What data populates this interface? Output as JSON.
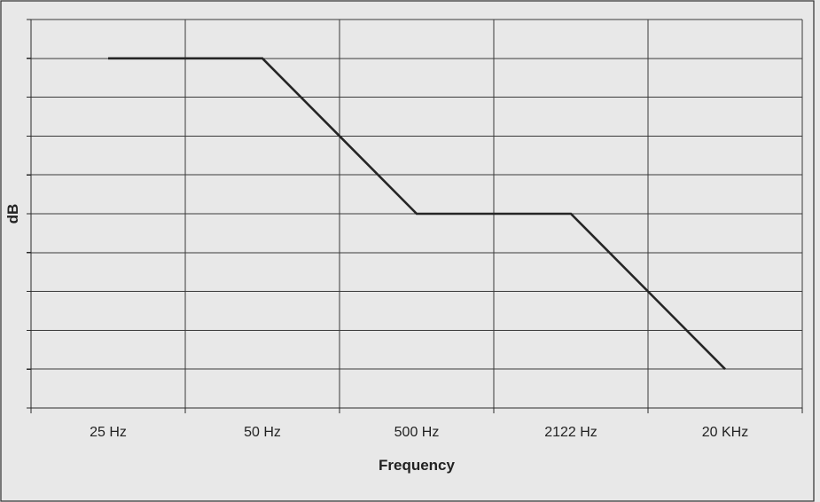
{
  "chart_data": {
    "type": "line",
    "title": "",
    "xlabel": "Frequency",
    "ylabel": "dB",
    "categories": [
      "25 Hz",
      "50 Hz",
      "500 Hz",
      "2122 Hz",
      "20 KHz"
    ],
    "y_ticks_labeled": false,
    "ylim": [
      0,
      10
    ],
    "grid": true,
    "series": [
      {
        "x": [
          0,
          1,
          2,
          3,
          4
        ],
        "y": [
          9,
          9,
          5,
          5,
          1
        ]
      }
    ]
  }
}
